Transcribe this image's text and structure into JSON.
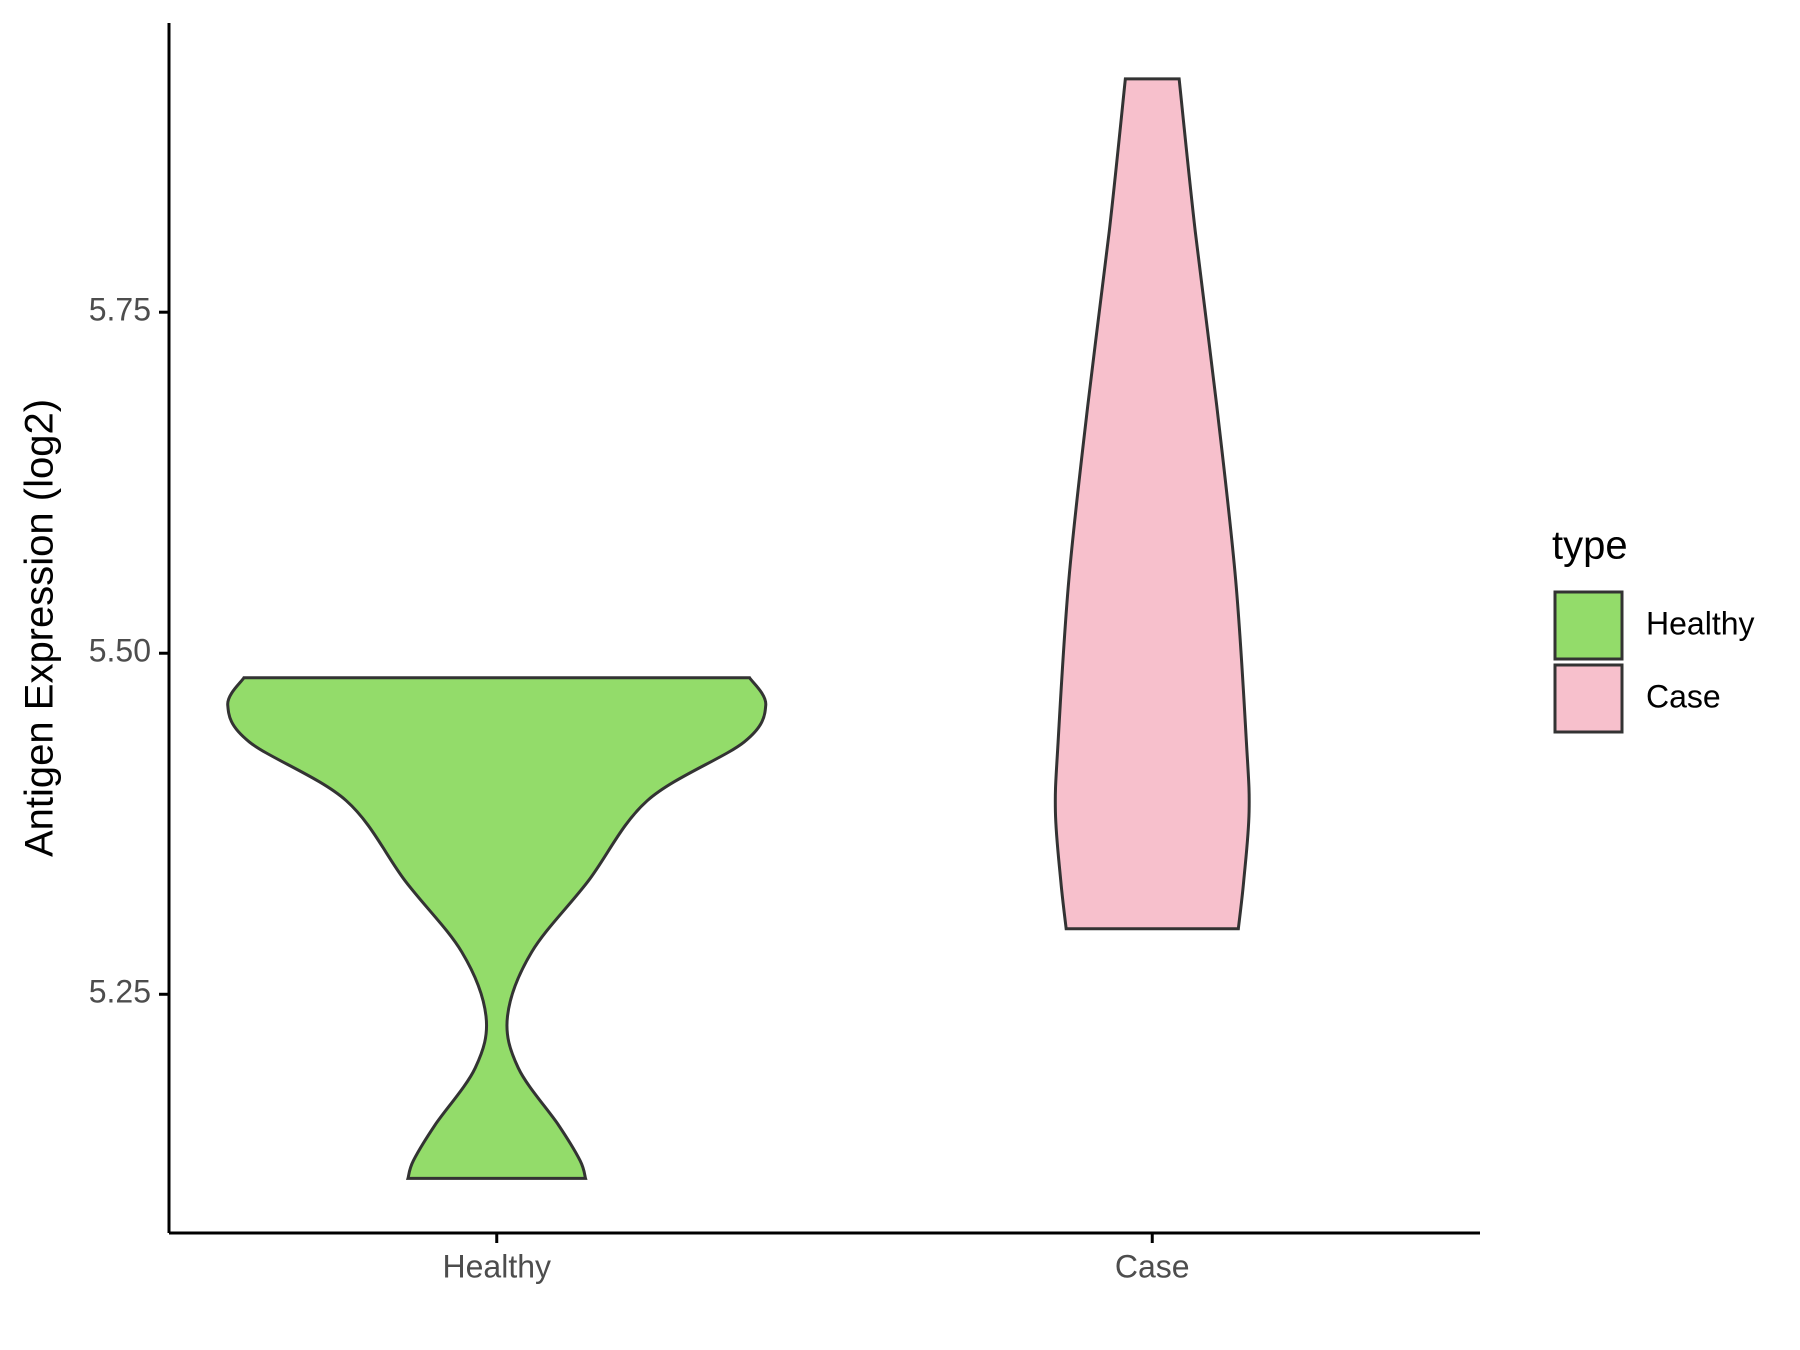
{
  "chart_data": {
    "type": "violin",
    "y_label": "Antigen Expression (log2)",
    "legend_title": "type",
    "legend_position": "right",
    "categories": [
      "Healthy",
      "Case"
    ],
    "series": [
      {
        "name": "Healthy",
        "color": "#93dc6a",
        "y": [
          5.482,
          5.462,
          5.435,
          5.392,
          5.333,
          5.281,
          5.234,
          5.196,
          5.154,
          5.128,
          5.115
        ],
        "density": [
          0.94,
          1.0,
          0.92,
          0.56,
          0.34,
          0.13,
          0.04,
          0.08,
          0.23,
          0.31,
          0.33
        ]
      },
      {
        "name": "Case",
        "color": "#f7c0cc",
        "y": [
          5.921,
          5.809,
          5.681,
          5.554,
          5.435,
          5.384,
          5.333,
          5.298
        ],
        "density": [
          0.1,
          0.16,
          0.24,
          0.31,
          0.35,
          0.36,
          0.34,
          0.32
        ]
      }
    ],
    "ylim": [
      5.075,
      5.962
    ],
    "yticks": [
      5.25,
      {
        "value": 5.5,
        "label": "5.50"
      },
      5.75
    ],
    "grid": false
  }
}
